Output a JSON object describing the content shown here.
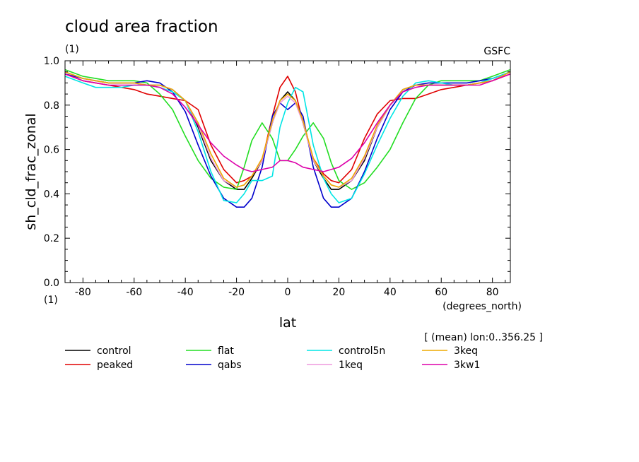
{
  "chart_data": {
    "type": "line",
    "title": "cloud area fraction",
    "units_label": "(1)",
    "source_label": "GSFC",
    "xlabel": "lat",
    "xunits": "(degrees_north)",
    "ylabel": "sh_cld_frac_zonal",
    "yunits": "(1)",
    "note": "[ (mean) lon:0..356.25 ]",
    "xlim": [
      -87,
      87
    ],
    "ylim": [
      0,
      1
    ],
    "xticks": [
      "-80",
      "-60",
      "-40",
      "-20",
      "0",
      "20",
      "40",
      "60",
      "80"
    ],
    "xtick_values": [
      -80,
      -60,
      -40,
      -20,
      0,
      20,
      40,
      60,
      80
    ],
    "yticks": [
      "0.0",
      "0.2",
      "0.4",
      "0.6",
      "0.8",
      "1.0"
    ],
    "ytick_values": [
      0,
      0.2,
      0.4,
      0.6,
      0.8,
      1.0
    ],
    "grid": false,
    "legend_placement": "bottom",
    "x": [
      -87,
      -80,
      -75,
      -70,
      -65,
      -60,
      -55,
      -50,
      -45,
      -40,
      -35,
      -30,
      -25,
      -20,
      -17,
      -14,
      -10,
      -6,
      -3,
      0,
      3,
      6,
      10,
      14,
      17,
      20,
      25,
      30,
      35,
      40,
      45,
      50,
      55,
      60,
      65,
      70,
      75,
      80,
      87
    ],
    "series": [
      {
        "name": "control",
        "color": "#000000",
        "values": [
          0.95,
          0.92,
          0.91,
          0.9,
          0.9,
          0.9,
          0.89,
          0.89,
          0.87,
          0.82,
          0.7,
          0.55,
          0.46,
          0.42,
          0.42,
          0.47,
          0.55,
          0.72,
          0.82,
          0.86,
          0.82,
          0.72,
          0.55,
          0.47,
          0.42,
          0.42,
          0.46,
          0.55,
          0.7,
          0.8,
          0.87,
          0.89,
          0.89,
          0.89,
          0.89,
          0.89,
          0.9,
          0.91,
          0.95
        ]
      },
      {
        "name": "peaked",
        "color": "#e00000",
        "values": [
          0.94,
          0.91,
          0.9,
          0.89,
          0.88,
          0.87,
          0.85,
          0.84,
          0.83,
          0.82,
          0.78,
          0.62,
          0.51,
          0.45,
          0.46,
          0.48,
          0.55,
          0.75,
          0.88,
          0.93,
          0.86,
          0.72,
          0.56,
          0.49,
          0.46,
          0.45,
          0.51,
          0.65,
          0.76,
          0.82,
          0.83,
          0.83,
          0.85,
          0.87,
          0.88,
          0.89,
          0.9,
          0.91,
          0.94
        ]
      },
      {
        "name": "flat",
        "color": "#22dd22",
        "values": [
          0.96,
          0.93,
          0.92,
          0.91,
          0.91,
          0.91,
          0.9,
          0.85,
          0.78,
          0.66,
          0.55,
          0.47,
          0.43,
          0.42,
          0.52,
          0.64,
          0.72,
          0.65,
          0.55,
          0.55,
          0.6,
          0.66,
          0.72,
          0.65,
          0.54,
          0.46,
          0.42,
          0.45,
          0.52,
          0.6,
          0.72,
          0.83,
          0.89,
          0.91,
          0.91,
          0.91,
          0.91,
          0.93,
          0.96
        ]
      },
      {
        "name": "qabs",
        "color": "#0000cc",
        "values": [
          0.94,
          0.92,
          0.91,
          0.9,
          0.9,
          0.9,
          0.91,
          0.9,
          0.86,
          0.77,
          0.62,
          0.48,
          0.38,
          0.34,
          0.34,
          0.38,
          0.52,
          0.75,
          0.81,
          0.78,
          0.81,
          0.75,
          0.52,
          0.38,
          0.34,
          0.34,
          0.38,
          0.5,
          0.65,
          0.78,
          0.86,
          0.89,
          0.9,
          0.9,
          0.9,
          0.9,
          0.91,
          0.92,
          0.95
        ]
      },
      {
        "name": "control5n",
        "color": "#00e5e5",
        "values": [
          0.93,
          0.9,
          0.88,
          0.88,
          0.88,
          0.89,
          0.89,
          0.88,
          0.86,
          0.82,
          0.68,
          0.5,
          0.37,
          0.36,
          0.4,
          0.46,
          0.46,
          0.48,
          0.7,
          0.81,
          0.88,
          0.86,
          0.62,
          0.47,
          0.4,
          0.36,
          0.38,
          0.49,
          0.62,
          0.74,
          0.84,
          0.9,
          0.91,
          0.9,
          0.89,
          0.89,
          0.9,
          0.92,
          0.95
        ]
      },
      {
        "name": "1keq",
        "color": "#ee99dd",
        "values": [
          0.95,
          0.92,
          0.91,
          0.9,
          0.9,
          0.9,
          0.89,
          0.89,
          0.87,
          0.82,
          0.71,
          0.56,
          0.46,
          0.43,
          0.44,
          0.48,
          0.55,
          0.72,
          0.81,
          0.84,
          0.81,
          0.72,
          0.55,
          0.48,
          0.44,
          0.43,
          0.46,
          0.56,
          0.7,
          0.8,
          0.87,
          0.89,
          0.89,
          0.89,
          0.89,
          0.89,
          0.9,
          0.91,
          0.95
        ]
      },
      {
        "name": "3keq",
        "color": "#eeaa00",
        "values": [
          0.95,
          0.92,
          0.91,
          0.9,
          0.9,
          0.9,
          0.89,
          0.89,
          0.87,
          0.82,
          0.72,
          0.58,
          0.47,
          0.43,
          0.44,
          0.48,
          0.56,
          0.73,
          0.82,
          0.85,
          0.82,
          0.73,
          0.56,
          0.48,
          0.44,
          0.43,
          0.47,
          0.57,
          0.71,
          0.8,
          0.87,
          0.89,
          0.89,
          0.89,
          0.89,
          0.89,
          0.9,
          0.91,
          0.95
        ]
      },
      {
        "name": "3kw1",
        "color": "#dd00aa",
        "values": [
          0.94,
          0.91,
          0.9,
          0.89,
          0.89,
          0.89,
          0.89,
          0.88,
          0.85,
          0.79,
          0.71,
          0.63,
          0.57,
          0.53,
          0.51,
          0.5,
          0.51,
          0.52,
          0.55,
          0.55,
          0.54,
          0.52,
          0.51,
          0.5,
          0.51,
          0.52,
          0.56,
          0.63,
          0.72,
          0.8,
          0.86,
          0.88,
          0.89,
          0.89,
          0.89,
          0.89,
          0.89,
          0.91,
          0.94
        ]
      }
    ]
  }
}
